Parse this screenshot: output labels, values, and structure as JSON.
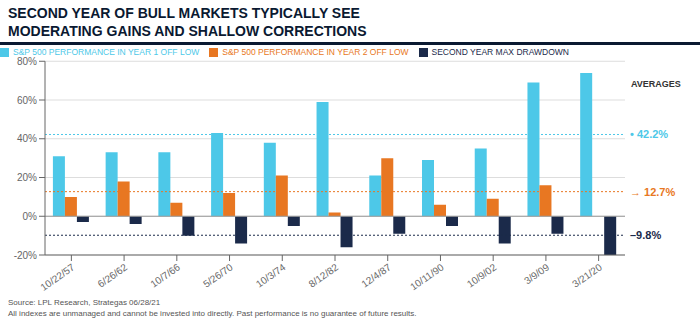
{
  "chart_data": {
    "type": "bar",
    "title": "SECOND YEAR OF BULL MARKETS TYPICALLY SEE",
    "subtitle": "MODERATING GAINS AND SHALLOW CORRECTIONS",
    "categories": [
      "10/22/57",
      "6/26/62",
      "10/7/66",
      "5/26/70",
      "10/3/74",
      "8/12/82",
      "12/4/87",
      "10/11/90",
      "10/9/02",
      "3/9/09",
      "3/21/20"
    ],
    "series": [
      {
        "name": "S&P 500 PERFORMANCE IN YEAR 1 OFF LOW",
        "color": "#4DC8E8",
        "values": [
          31,
          33,
          33,
          43,
          38,
          59,
          21,
          29,
          35,
          69,
          74
        ]
      },
      {
        "name": "S&P 500 PERFORMANCE IN YEAR 2 OFF LOW",
        "color": "#E87722",
        "values": [
          10,
          18,
          7,
          12,
          21,
          2,
          30,
          6,
          9,
          16,
          0
        ]
      },
      {
        "name": "SECOND YEAR MAX DRAWDOWN",
        "color": "#1B2A4A",
        "values": [
          -3,
          -4,
          -10,
          -14,
          -5,
          -16,
          -9,
          -5,
          -14,
          -9,
          -20
        ]
      }
    ],
    "ylim": [
      -20,
      80
    ],
    "yticks": [
      {
        "value": -20,
        "label": "-20%"
      },
      {
        "value": 0,
        "label": "0%"
      },
      {
        "value": 20,
        "label": "20%"
      },
      {
        "value": 40,
        "label": "40%"
      },
      {
        "value": 60,
        "label": "60%"
      },
      {
        "value": 80,
        "label": "80%"
      }
    ],
    "grid": true,
    "legend": "top",
    "averages": {
      "label": "AVERAGES",
      "lines": [
        {
          "value": 42.2,
          "label": "• 42.2%",
          "color": "#4DC8E8"
        },
        {
          "value": 12.7,
          "label": "→ 12.7%",
          "color": "#E87722"
        },
        {
          "value": -9.8,
          "label": "–9.8%",
          "color": "#1B2A4A"
        }
      ]
    },
    "annotations": [
      "Source: LPL Research, Strategas 06/28/21",
      "All indexes are unmanaged and cannot be invested into directly. Past performance is no guarantee of future results."
    ]
  }
}
